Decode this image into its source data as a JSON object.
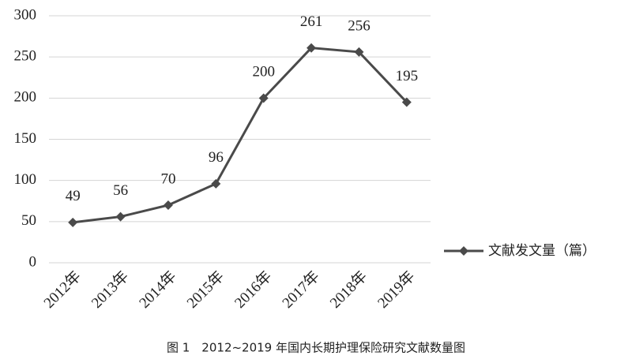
{
  "chart_data": {
    "type": "line",
    "categories": [
      "2012年",
      "2013年",
      "2014年",
      "2015年",
      "2016年",
      "2017年",
      "2018年",
      "2019年"
    ],
    "series": [
      {
        "name": "文献发文量（篇）",
        "color": "#4a4a4a",
        "values": [
          49,
          56,
          70,
          96,
          200,
          261,
          256,
          195
        ]
      }
    ],
    "ylim": [
      0,
      300
    ],
    "yticks": [
      0,
      50,
      100,
      150,
      200,
      250,
      300
    ],
    "grid": true,
    "legend": "right",
    "caption": "图 1　2012~2019 年国内长期护理保险研究文献数量图"
  }
}
